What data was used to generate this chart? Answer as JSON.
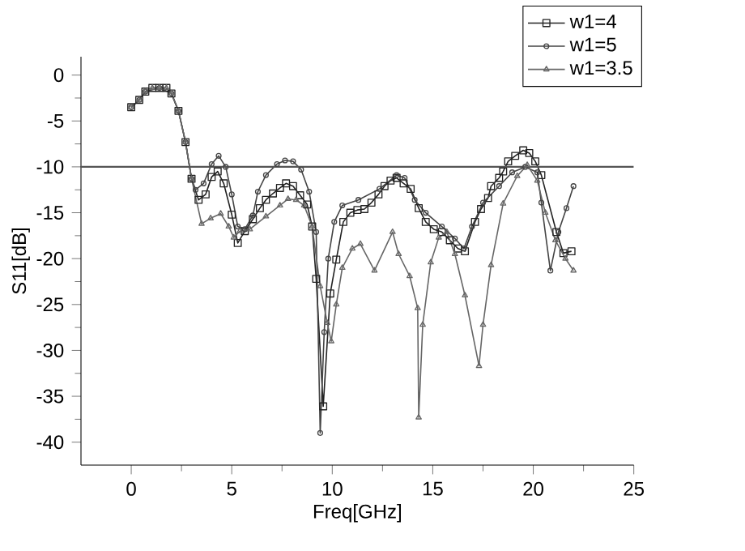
{
  "chart_data": {
    "type": "line",
    "xlabel": "Freq[GHz]",
    "ylabel": "S11[dB]",
    "xlim": [
      -2.5,
      25
    ],
    "ylim": [
      -42.5,
      2
    ],
    "xticks": [
      0,
      5,
      10,
      15,
      20,
      25
    ],
    "yticks": [
      0,
      -5,
      -10,
      -15,
      -20,
      -25,
      -30,
      -35,
      -40
    ],
    "grid": false,
    "legend": "top right",
    "line_style": "solid",
    "ref_lines": [
      {
        "axis": "y",
        "value": -10,
        "color": "#555555"
      }
    ],
    "series": [
      {
        "name": "w1=4",
        "color": "#222222",
        "marker": "square",
        "x": [
          0,
          0.4,
          0.7,
          1.05,
          1.4,
          1.75,
          2.0,
          2.35,
          2.7,
          3.0,
          3.35,
          3.7,
          4.0,
          4.3,
          4.6,
          5.0,
          5.3,
          5.65,
          6.05,
          6.4,
          6.7,
          7.05,
          7.4,
          7.7,
          8.05,
          8.4,
          8.75,
          9.0,
          9.2,
          9.55,
          9.9,
          10.2,
          10.55,
          10.9,
          11.25,
          11.6,
          11.95,
          12.3,
          12.6,
          12.9,
          13.2,
          13.55,
          13.9,
          14.3,
          14.65,
          15.05,
          15.45,
          15.85,
          16.25,
          16.6,
          17.1,
          17.4,
          17.75,
          17.9,
          18.3,
          18.5,
          18.75,
          19.1,
          19.5,
          19.8,
          20.1,
          20.4,
          21.15,
          21.5,
          21.9
        ],
        "values": [
          -3.5,
          -2.7,
          -1.8,
          -1.4,
          -1.4,
          -1.4,
          -2.0,
          -3.9,
          -7.3,
          -11.3,
          -13.6,
          -13,
          -11.1,
          -10.5,
          -11.8,
          -15.2,
          -18.3,
          -17,
          -15.7,
          -14.5,
          -13.6,
          -12.9,
          -12.3,
          -11.8,
          -12.1,
          -13.1,
          -14.1,
          -16.5,
          -22.2,
          -36.1,
          -23.8,
          -20.1,
          -16,
          -15,
          -14.7,
          -14.6,
          -13.9,
          -13,
          -12.1,
          -11.5,
          -11.2,
          -11.8,
          -12.4,
          -14.5,
          -16,
          -16.8,
          -17.1,
          -18,
          -18.9,
          -19.2,
          -16,
          -14.6,
          -13.4,
          -12.1,
          -11.2,
          -10.5,
          -9.4,
          -8.8,
          -8.2,
          -8.5,
          -9.4,
          -10.9,
          -17.1,
          -19.4,
          -19.2
        ]
      },
      {
        "name": "w1=5",
        "color": "#444444",
        "marker": "circle",
        "x": [
          0,
          0.4,
          0.7,
          1.05,
          1.4,
          1.75,
          2.0,
          2.35,
          2.7,
          3.0,
          3.2,
          3.6,
          4.0,
          4.35,
          4.7,
          5.0,
          5.3,
          5.65,
          6.05,
          6.3,
          6.7,
          7.25,
          7.65,
          8.05,
          8.45,
          8.85,
          9.2,
          9.4,
          9.6,
          9.8,
          10.1,
          10.5,
          11.3,
          12.35,
          13.2,
          13.6,
          14.1,
          14.65,
          15.45,
          16.1,
          16.55,
          16.95,
          17.5,
          18.3,
          18.95,
          19.6,
          20.2,
          20.4,
          20.85,
          21.25,
          21.65,
          22.0
        ],
        "values": [
          -3.5,
          -2.7,
          -1.8,
          null,
          -1.4,
          null,
          -2.0,
          -3.9,
          -7.3,
          -11.3,
          -12.5,
          -11.8,
          -9.7,
          -8.8,
          -10,
          -13,
          -16.5,
          -16.8,
          -15.3,
          -12.7,
          -10.9,
          -9.7,
          -9.3,
          -9.4,
          -10.3,
          -12.7,
          -17.1,
          -39,
          -28,
          -20,
          -16,
          -14.2,
          -13.6,
          -12.4,
          -10.9,
          -11.2,
          -13.6,
          -15,
          -16.5,
          -17.8,
          -18.9,
          -16.5,
          -13.9,
          -12.1,
          -10.6,
          -10,
          -10.6,
          -13.9,
          -21.3,
          -17.1,
          -14.5,
          -12.1
        ]
      },
      {
        "name": "w1=3.5",
        "color": "#666666",
        "marker": "triangle",
        "x": [
          0,
          0.4,
          0.7,
          1.05,
          1.4,
          1.75,
          2.0,
          2.35,
          2.7,
          3.0,
          3.5,
          3.95,
          4.45,
          4.85,
          5.1,
          5.4,
          5.9,
          6.7,
          7.4,
          7.8,
          8.2,
          8.6,
          9.0,
          9.4,
          9.75,
          9.95,
          10.2,
          10.5,
          11.0,
          11.4,
          12.1,
          13.0,
          13.3,
          13.85,
          14.25,
          14.3,
          14.5,
          14.9,
          15.3,
          15.7,
          16.1,
          16.6,
          17.3,
          17.5,
          17.9,
          18.5,
          19.2,
          19.7,
          20.2,
          20.6,
          21.1,
          21.6,
          22.0
        ],
        "values": [
          -3.5,
          -2.7,
          -1.8,
          -1.4,
          -1.4,
          -1.4,
          -2.0,
          -3.9,
          -7.3,
          -11.3,
          -16.2,
          -15.6,
          -15.1,
          -16.5,
          -17.7,
          -17,
          -16.8,
          -15.4,
          -14.2,
          -13.5,
          -13.6,
          -14.2,
          -16.5,
          -23,
          -27,
          -29,
          -25,
          -21,
          -18.9,
          -18.4,
          -21.3,
          -17.1,
          -19.5,
          -21.9,
          -25.4,
          -37.3,
          -27.2,
          -20.4,
          -17.7,
          -17.1,
          -19.5,
          -24,
          -31.7,
          -27.2,
          -20.7,
          -14,
          -11,
          -9.8,
          -11.5,
          -15,
          -18,
          -20,
          -21.3
        ]
      }
    ]
  }
}
